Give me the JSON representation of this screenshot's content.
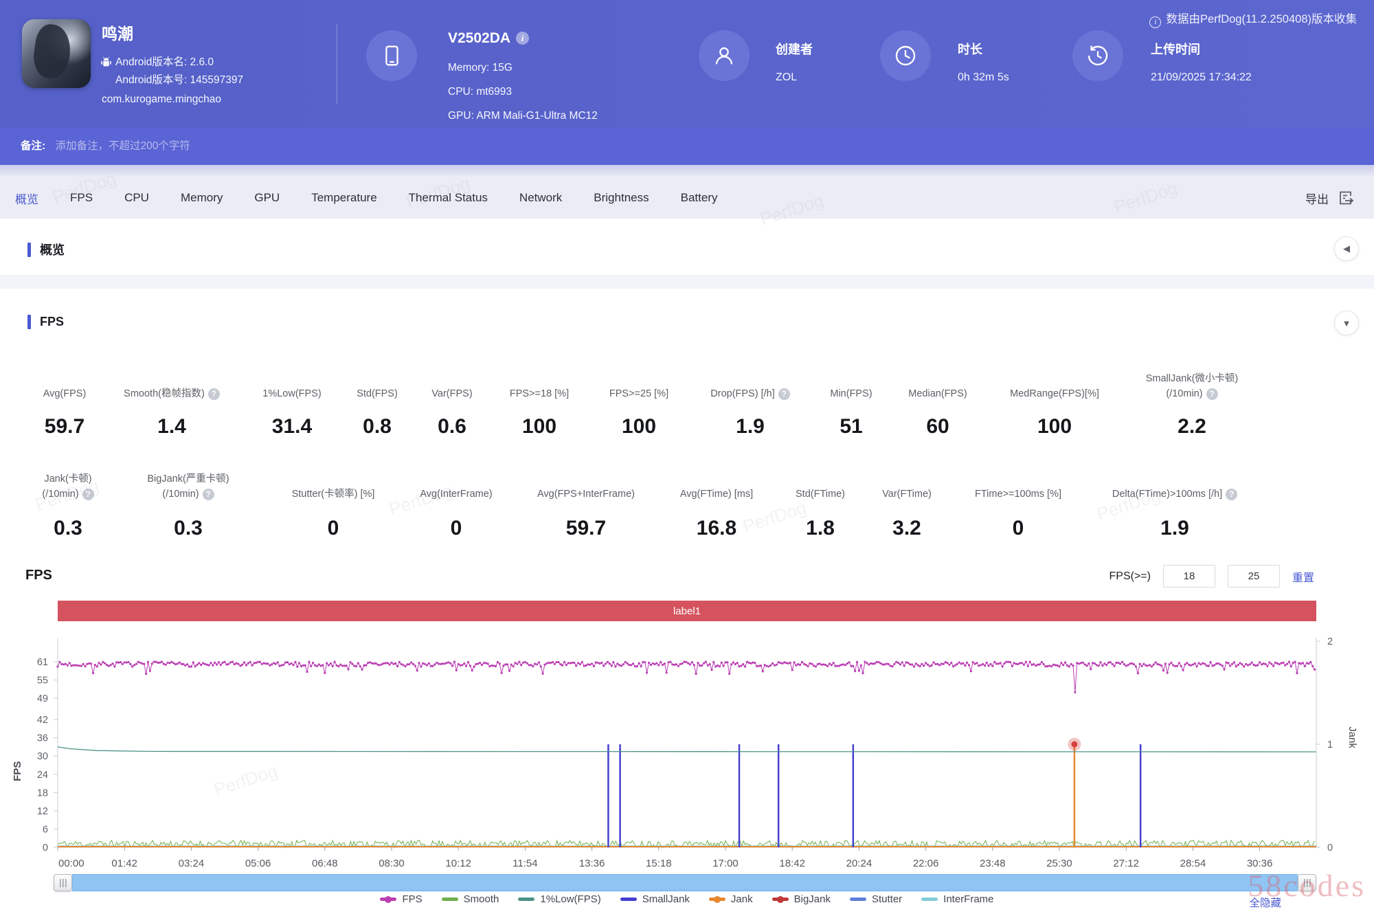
{
  "page": {
    "collector_note": "数据由PerfDog(11.2.250408)版本收集"
  },
  "header": {
    "app": {
      "name": "鸣潮",
      "android_version_name": "Android版本名: 2.6.0",
      "android_version_code": "Android版本号: 145597397",
      "package_name": "com.kurogame.mingchao"
    },
    "device": {
      "model": "V2502DA",
      "memory": "Memory: 15G",
      "cpu": "CPU: mt6993",
      "gpu": "GPU: ARM Mali-G1-Ultra MC12"
    },
    "creator": {
      "label": "创建者",
      "value": "ZOL"
    },
    "duration": {
      "label": "时长",
      "value": "0h 32m 5s"
    },
    "upload_time": {
      "label": "上传时间",
      "value": "21/09/2025 17:34:22"
    }
  },
  "note_bar": {
    "label": "备注:",
    "placeholder": "添加备注，不超过200个字符"
  },
  "tab_bar": {
    "tabs": [
      "概览",
      "FPS",
      "CPU",
      "Memory",
      "GPU",
      "Temperature",
      "Thermal Status",
      "Network",
      "Brightness",
      "Battery"
    ],
    "active_tab": "概览",
    "export_label": "导出"
  },
  "sections": {
    "overview_title": "概览",
    "fps_title": "FPS"
  },
  "fps_stats_row1": [
    {
      "label": "Avg(FPS)",
      "value": "59.7"
    },
    {
      "label": "Smooth(稳帧指数)",
      "value": "1.4",
      "help": true
    },
    {
      "label": "1%Low(FPS)",
      "value": "31.4"
    },
    {
      "label": "Std(FPS)",
      "value": "0.8"
    },
    {
      "label": "Var(FPS)",
      "value": "0.6"
    },
    {
      "label": "FPS>=18 [%]",
      "value": "100"
    },
    {
      "label": "FPS>=25 [%]",
      "value": "100"
    },
    {
      "label": "Drop(FPS) [/h]",
      "value": "1.9",
      "help": true
    },
    {
      "label": "Min(FPS)",
      "value": "51"
    },
    {
      "label": "Median(FPS)",
      "value": "60"
    },
    {
      "label": "MedRange(FPS)[%]",
      "value": "100"
    },
    {
      "label": "SmallJank(微小卡顿)",
      "label2": "(/10min)",
      "value": "2.2",
      "help": true
    }
  ],
  "fps_stats_row2": [
    {
      "label": "Jank(卡顿)",
      "label2": "(/10min)",
      "value": "0.3",
      "help": true
    },
    {
      "label": "BigJank(严重卡顿)",
      "label2": "(/10min)",
      "value": "0.3",
      "help": true
    },
    {
      "label": "Stutter(卡顿率) [%]",
      "value": "0"
    },
    {
      "label": "Avg(InterFrame)",
      "value": "0"
    },
    {
      "label": "Avg(FPS+InterFrame)",
      "value": "59.7"
    },
    {
      "label": "Avg(FTime) [ms]",
      "value": "16.8"
    },
    {
      "label": "Std(FTime)",
      "value": "1.8"
    },
    {
      "label": "Var(FTime)",
      "value": "3.2"
    },
    {
      "label": "FTime>=100ms [%]",
      "value": "0"
    },
    {
      "label": "Delta(FTime)>100ms [/h]",
      "value": "1.9",
      "help": true
    }
  ],
  "fps_chart_controls": {
    "chart_title": "FPS",
    "threshold_label": "FPS(>=)",
    "threshold_values": [
      "18",
      "25"
    ],
    "reset_label": "重置",
    "hide_all_label": "全隐藏"
  },
  "watermarks": {
    "diagonal": "PerfDog",
    "corner": "58codes"
  },
  "chart_data": {
    "type": "line",
    "title": "FPS",
    "annotation_bar": {
      "label": "label1",
      "color": "#d4535f"
    },
    "x_ticks": [
      "00:00",
      "01:42",
      "03:24",
      "05:06",
      "06:48",
      "08:30",
      "10:12",
      "11:54",
      "13:36",
      "15:18",
      "17:00",
      "18:42",
      "20:24",
      "22:06",
      "23:48",
      "25:30",
      "27:12",
      "28:54",
      "30:36"
    ],
    "x_tick_interval_seconds": 102,
    "duration_seconds": 1922,
    "y_left": {
      "label": "FPS",
      "ticks": [
        0,
        6,
        12,
        18,
        24,
        30,
        36,
        42,
        49,
        55,
        61
      ],
      "max": 61
    },
    "y_right": {
      "label": "Jank",
      "ticks": [
        0,
        1,
        2
      ],
      "max": 2
    },
    "grid": false,
    "legend_position": "bottom-center",
    "series": [
      {
        "name": "FPS",
        "color": "#bb3fb4",
        "type": "noisy_line",
        "axis": "left",
        "avg": 59.7,
        "band": [
          58.3,
          61
        ],
        "occasional_low": 57,
        "min_dip": {
          "time_s": 1553,
          "value": 51
        },
        "legend_dot": true
      },
      {
        "name": "Smooth",
        "color": "#6fae4c",
        "type": "noise_band",
        "axis": "left",
        "range": [
          0,
          2.3
        ]
      },
      {
        "name": "1%Low(FPS)",
        "color": "#4d9287",
        "type": "flat_line",
        "axis": "left",
        "start_value": 33,
        "value": 31.4
      },
      {
        "name": "SmallJank",
        "color": "#4540d0",
        "type": "event_spikes",
        "axis": "right",
        "spike_value": 1,
        "event_times_s": [
          841,
          859,
          1041,
          1101,
          1215,
          1654
        ]
      },
      {
        "name": "Jank",
        "color": "#e8882f",
        "type": "baseline_spikes",
        "axis": "right",
        "baseline": 0,
        "spike_value": 1,
        "event_times_s": [
          1553
        ],
        "legend_dot": true
      },
      {
        "name": "BigJank",
        "color": "#c03a38",
        "type": "event_markers",
        "axis": "right",
        "marker_value": 1,
        "event_times_s": [
          1553
        ],
        "marker_color": "#d84040",
        "legend_dot": true
      },
      {
        "name": "Stutter",
        "color": "#5d7fd8",
        "type": "none",
        "values": []
      },
      {
        "name": "InterFrame",
        "color": "#82ccd8",
        "type": "baseline",
        "axis": "left",
        "value": 0
      }
    ]
  }
}
